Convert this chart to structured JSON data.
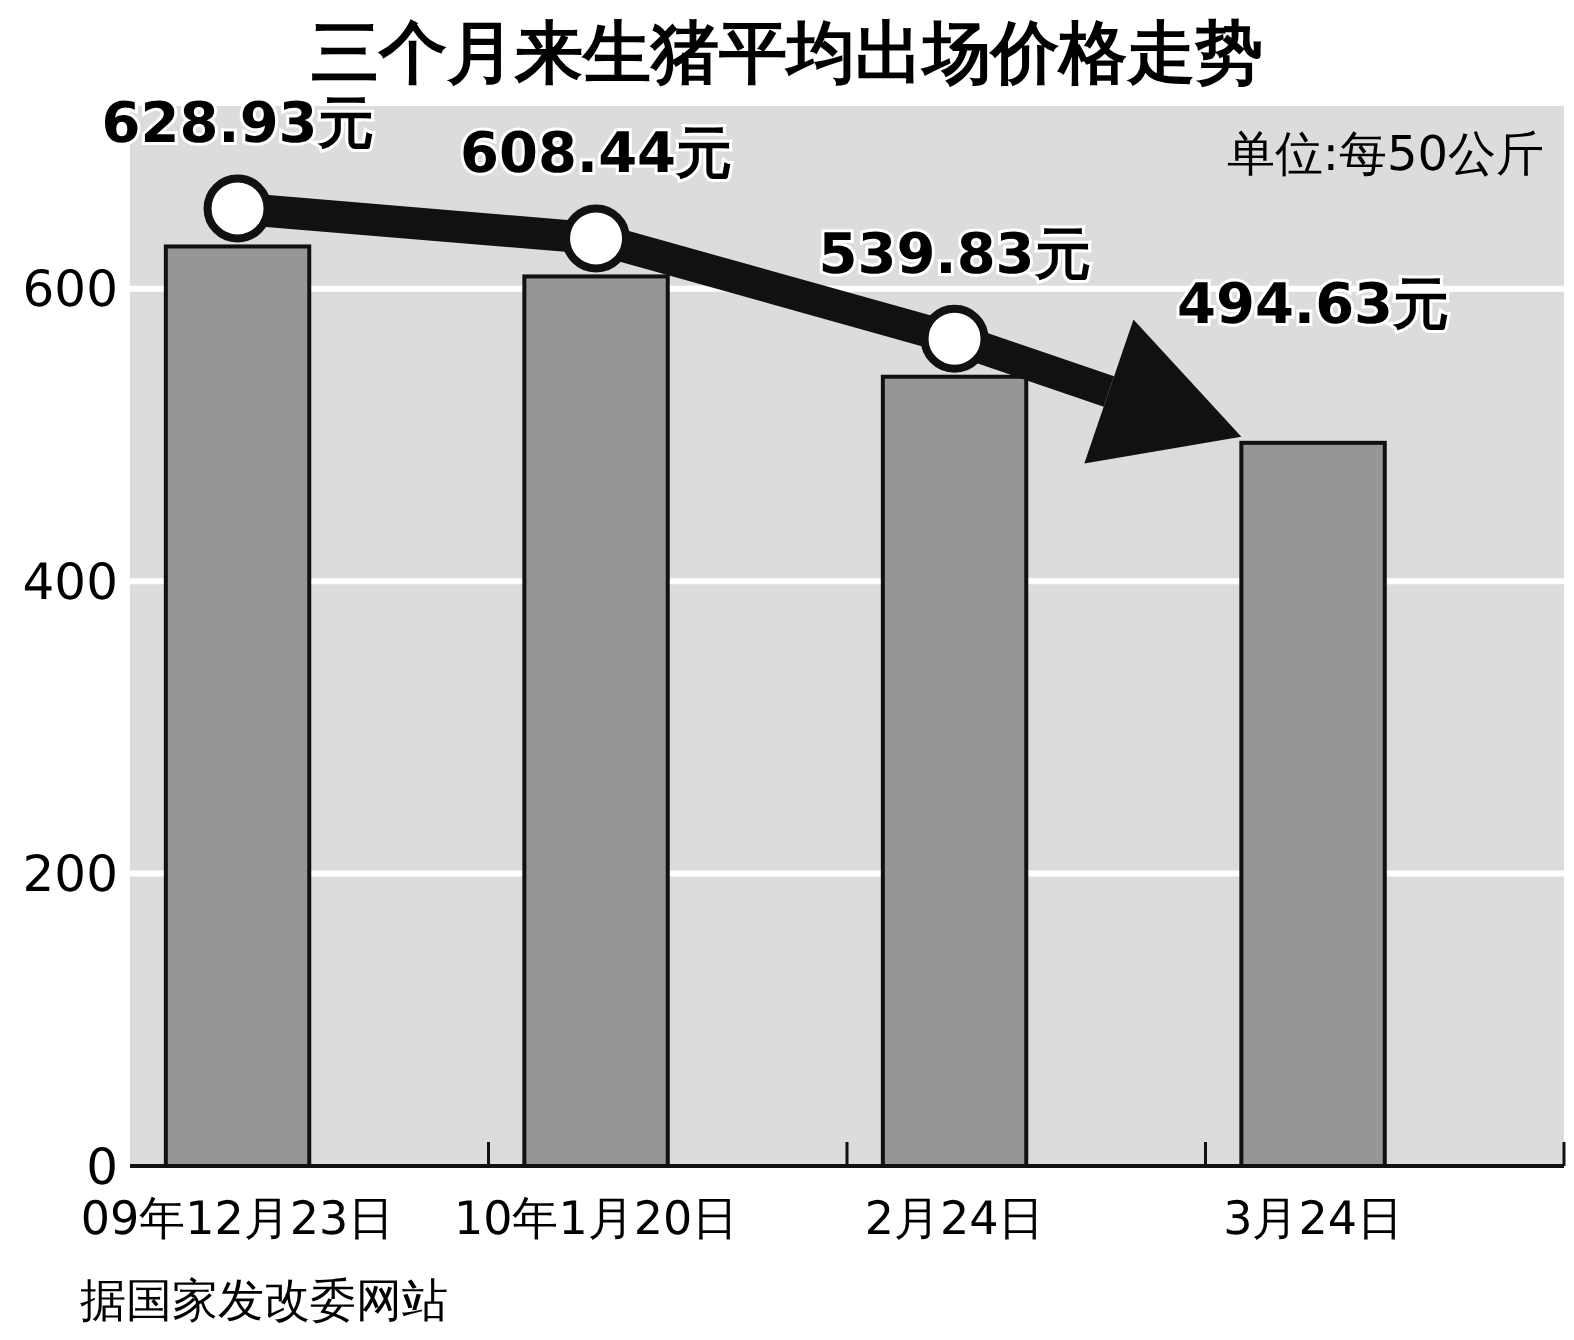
{
  "chart_data": {
    "type": "bar",
    "title": "三个月来生猪平均出场价格走势",
    "categories": [
      "09年12月23日",
      "10年1月20日",
      "2月24日",
      "3月24日"
    ],
    "values": [
      628.93,
      608.44,
      539.83,
      494.63
    ],
    "value_labels": [
      "628.93元",
      "608.44元",
      "539.83元",
      "494.63元"
    ],
    "color": "#969696",
    "ylim": [
      0,
      725
    ],
    "yticks": [
      0,
      200,
      400,
      600
    ],
    "grid": "y",
    "annotations": [
      "单位:每50公斤",
      "据国家发改委网站"
    ]
  }
}
